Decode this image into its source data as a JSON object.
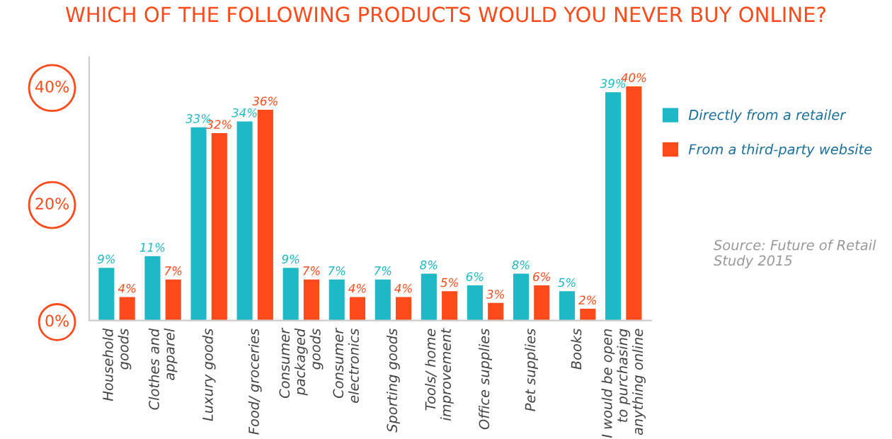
{
  "chart_data": {
    "type": "bar",
    "title": "WHICH OF THE FOLLOWING PRODUCTS WOULD YOU NEVER BUY ONLINE?",
    "categories": [
      "Household goods",
      "Clothes and apparel",
      "Luxury goods",
      "Food/ groceries",
      "Consumer packaged goods",
      "Consumer electronics",
      "Sporting goods",
      "Tools/ home improvement",
      "Office supplies",
      "Pet supplies",
      "Books",
      "I would be open to purchasing anything online"
    ],
    "series": [
      {
        "name": "Directly from a retailer",
        "color": "#1fb8c6",
        "values": [
          9,
          11,
          33,
          34,
          9,
          7,
          7,
          8,
          6,
          8,
          5,
          39
        ],
        "value_labels": [
          "9%",
          "11%",
          "33%",
          "34%",
          "9%",
          "7%",
          "7%",
          "8%",
          "6%",
          "8%",
          "5%",
          "39%"
        ]
      },
      {
        "name": "From a third-party website",
        "color": "#ff4a1c",
        "values": [
          4,
          7,
          32,
          36,
          7,
          4,
          4,
          5,
          3,
          6,
          2,
          40
        ],
        "value_labels": [
          "4%",
          "7%",
          "32%",
          "36%",
          "7%",
          "4%",
          "4%",
          "5%",
          "3%",
          "6%",
          "2%",
          "40%"
        ]
      }
    ],
    "ylim": [
      0,
      45
    ],
    "yticks": [
      {
        "value": 0,
        "label": "0%"
      },
      {
        "value": 20,
        "label": "20%"
      },
      {
        "value": 40,
        "label": "40%"
      }
    ],
    "legend": "right",
    "grid": false,
    "annotations": [
      "Source: Future of Retail Study 2015"
    ]
  }
}
